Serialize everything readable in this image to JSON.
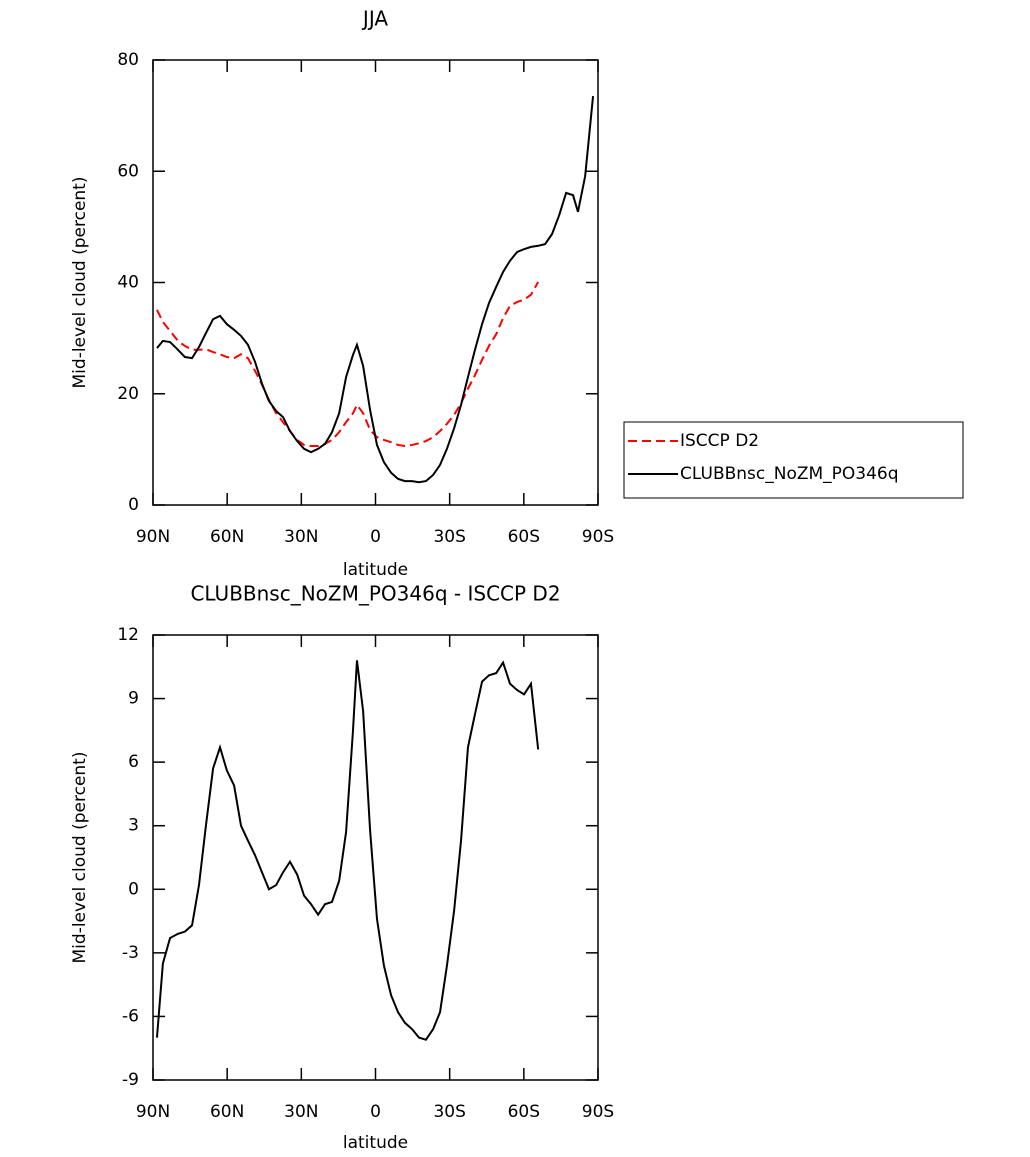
{
  "chart_data": [
    {
      "type": "line",
      "title": "JJA",
      "xlabel": "latitude",
      "ylabel": "Mid-level cloud (percent)",
      "x": [
        88.4,
        86.0,
        83.1,
        79.9,
        77.1,
        74.2,
        71.4,
        68.6,
        65.7,
        62.9,
        60.1,
        57.2,
        54.4,
        51.6,
        48.7,
        45.9,
        43.1,
        40.2,
        37.4,
        34.6,
        31.7,
        28.9,
        26.1,
        23.2,
        20.4,
        17.6,
        14.7,
        11.9,
        9.1,
        7.5,
        5.0,
        2.2,
        -0.6,
        -3.4,
        -6.3,
        -9.1,
        -11.9,
        -14.8,
        -17.6,
        -20.4,
        -23.3,
        -26.1,
        -28.9,
        -31.8,
        -34.6,
        -37.4,
        -40.3,
        -43.1,
        -45.9,
        -48.8,
        -51.6,
        -54.4,
        -57.3,
        -60.1,
        -62.9,
        -65.8,
        -68.6,
        -71.4,
        -74.3,
        -77.1,
        -79.9,
        -81.9,
        -84.8,
        -88.0
      ],
      "xlim": [
        90,
        -90
      ],
      "xticks": [
        {
          "value": 90,
          "label": "90N"
        },
        {
          "value": 60,
          "label": "60N"
        },
        {
          "value": 30,
          "label": "30N"
        },
        0,
        {
          "value": -30,
          "label": "30S"
        },
        {
          "value": -60,
          "label": "60S"
        },
        {
          "value": -90,
          "label": "90S"
        }
      ],
      "ylim": [
        0,
        80
      ],
      "yticks": [
        0,
        20,
        40,
        60,
        80
      ],
      "legend": "right",
      "series": [
        {
          "name": "ISCCP D2",
          "color": "#ff0000",
          "dash": true,
          "values": [
            35.1,
            32.9,
            31.3,
            29.5,
            28.6,
            27.9,
            27.9,
            28.0,
            27.5,
            27.1,
            26.6,
            26.4,
            27.1,
            26.4,
            24.1,
            21.6,
            18.9,
            16.5,
            14.9,
            13.3,
            11.7,
            10.8,
            10.6,
            10.6,
            11.0,
            11.7,
            13.1,
            14.9,
            16.5,
            18.0,
            16.5,
            13.5,
            12.2,
            11.7,
            11.3,
            10.8,
            10.6,
            10.8,
            11.1,
            11.5,
            12.2,
            13.3,
            14.6,
            16.2,
            18.3,
            20.9,
            23.4,
            26.1,
            28.6,
            30.7,
            33.6,
            35.8,
            36.5,
            36.9,
            37.8,
            40.1,
            null,
            null,
            null,
            null,
            null,
            null,
            null,
            null
          ]
        },
        {
          "name": "CLUBBnsc_NoZM_PO346q",
          "color": "#000000",
          "dash": false,
          "values": [
            28.2,
            29.5,
            29.3,
            27.9,
            26.6,
            26.4,
            28.4,
            30.9,
            33.4,
            34.0,
            32.5,
            31.5,
            30.4,
            28.8,
            25.7,
            21.8,
            18.7,
            16.9,
            15.8,
            13.3,
            11.5,
            10.1,
            9.5,
            10.1,
            11.0,
            13.1,
            16.5,
            23.0,
            27.0,
            28.8,
            25.0,
            17.1,
            10.8,
            7.7,
            5.8,
            4.7,
            4.3,
            4.3,
            4.1,
            4.3,
            5.4,
            7.2,
            10.1,
            13.8,
            18.0,
            23.0,
            28.0,
            32.5,
            36.3,
            39.2,
            41.9,
            43.9,
            45.5,
            46.0,
            46.4,
            46.6,
            46.9,
            48.7,
            52.1,
            56.1,
            55.7,
            52.7,
            59.1,
            73.5
          ]
        }
      ]
    },
    {
      "type": "line",
      "title": "CLUBBnsc_NoZM_PO346q - ISCCP D2",
      "xlabel": "latitude",
      "ylabel": "Mid-level cloud (percent)",
      "x": [
        88.4,
        86.0,
        83.1,
        79.9,
        77.1,
        74.2,
        71.4,
        68.6,
        65.7,
        62.9,
        60.1,
        57.2,
        54.4,
        51.6,
        48.7,
        45.9,
        43.1,
        40.2,
        37.4,
        34.6,
        31.7,
        28.9,
        26.1,
        23.2,
        20.4,
        17.6,
        14.7,
        11.9,
        9.1,
        7.5,
        5.0,
        2.2,
        -0.6,
        -3.4,
        -6.3,
        -9.1,
        -11.9,
        -14.8,
        -17.6,
        -20.4,
        -23.3,
        -26.1,
        -28.9,
        -31.8,
        -34.6,
        -37.4,
        -40.3,
        -43.1,
        -45.9,
        -48.8,
        -51.6,
        -54.4,
        -57.3,
        -60.1,
        -62.9,
        -65.8,
        -68.6,
        -71.4,
        -74.3,
        -77.1,
        -79.9,
        -81.9,
        -84.8,
        -88.0
      ],
      "xlim": [
        90,
        -90
      ],
      "xticks": [
        {
          "value": 90,
          "label": "90N"
        },
        {
          "value": 60,
          "label": "60N"
        },
        {
          "value": 30,
          "label": "30N"
        },
        0,
        {
          "value": -30,
          "label": "30S"
        },
        {
          "value": -60,
          "label": "60S"
        },
        {
          "value": -90,
          "label": "90S"
        }
      ],
      "ylim": [
        -9,
        12
      ],
      "yticks": [
        -9,
        -6,
        -3,
        0,
        3,
        6,
        9,
        12
      ],
      "series": [
        {
          "color": "#000000",
          "dash": false,
          "values": [
            -7.0,
            -3.5,
            -2.3,
            -2.1,
            -2.0,
            -1.7,
            0.2,
            3.0,
            5.7,
            6.7,
            5.6,
            4.9,
            3.0,
            2.3,
            1.6,
            0.8,
            0.0,
            0.2,
            0.8,
            1.3,
            0.7,
            -0.3,
            -0.7,
            -1.2,
            -0.7,
            -0.6,
            0.4,
            2.7,
            7.5,
            10.8,
            8.4,
            2.8,
            -1.4,
            -3.6,
            -5.0,
            -5.8,
            -6.3,
            -6.6,
            -7.0,
            -7.1,
            -6.6,
            -5.8,
            -3.6,
            -1.0,
            2.3,
            6.7,
            8.3,
            9.8,
            10.1,
            10.2,
            10.7,
            9.7,
            9.4,
            9.2,
            9.7,
            6.6,
            null,
            null,
            null,
            null,
            null,
            null,
            null,
            null
          ]
        }
      ]
    }
  ]
}
